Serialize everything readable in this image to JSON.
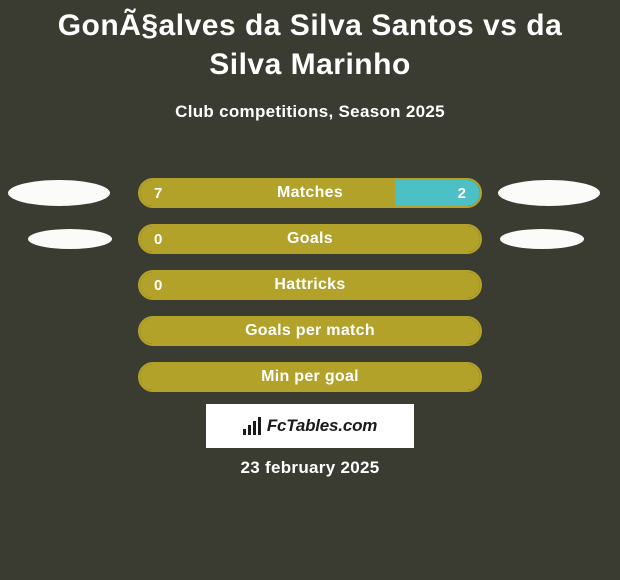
{
  "title": "GonÃ§alves da Silva Santos vs da Silva Marinho",
  "subtitle": "Club competitions, Season 2025",
  "background_color": "#3a3b31",
  "text_color": "#ffffff",
  "ellipse_color": "#fbfbfa",
  "rows": [
    {
      "label": "Matches",
      "left_value": "7",
      "right_value": "2",
      "left_fill_pct": 75,
      "right_fill_pct": 25,
      "left_color": "#b3a22a",
      "right_color": "#4cc0c4",
      "border_color": "#b3a22a",
      "show_left_ellipse": true,
      "show_right_ellipse": true,
      "ellipse_size": "big"
    },
    {
      "label": "Goals",
      "left_value": "0",
      "right_value": "",
      "left_fill_pct": 100,
      "right_fill_pct": 0,
      "left_color": "#b3a22a",
      "right_color": "#4cc0c4",
      "border_color": "#b3a22a",
      "show_left_ellipse": true,
      "show_right_ellipse": true,
      "ellipse_size": "small"
    },
    {
      "label": "Hattricks",
      "left_value": "0",
      "right_value": "",
      "left_fill_pct": 100,
      "right_fill_pct": 0,
      "left_color": "#b3a22a",
      "right_color": "#4cc0c4",
      "border_color": "#b3a22a",
      "show_left_ellipse": false,
      "show_right_ellipse": false,
      "ellipse_size": ""
    },
    {
      "label": "Goals per match",
      "left_value": "",
      "right_value": "",
      "left_fill_pct": 100,
      "right_fill_pct": 0,
      "left_color": "#b3a22a",
      "right_color": "#4cc0c4",
      "border_color": "#b3a22a",
      "show_left_ellipse": false,
      "show_right_ellipse": false,
      "ellipse_size": ""
    },
    {
      "label": "Min per goal",
      "left_value": "",
      "right_value": "",
      "left_fill_pct": 100,
      "right_fill_pct": 0,
      "left_color": "#b3a22a",
      "right_color": "#4cc0c4",
      "border_color": "#b3a22a",
      "show_left_ellipse": false,
      "show_right_ellipse": false,
      "ellipse_size": ""
    }
  ],
  "brand": "FcTables.com",
  "brand_bg": "#ffffff",
  "brand_text_color": "#1a1a1a",
  "date": "23 february 2025"
}
